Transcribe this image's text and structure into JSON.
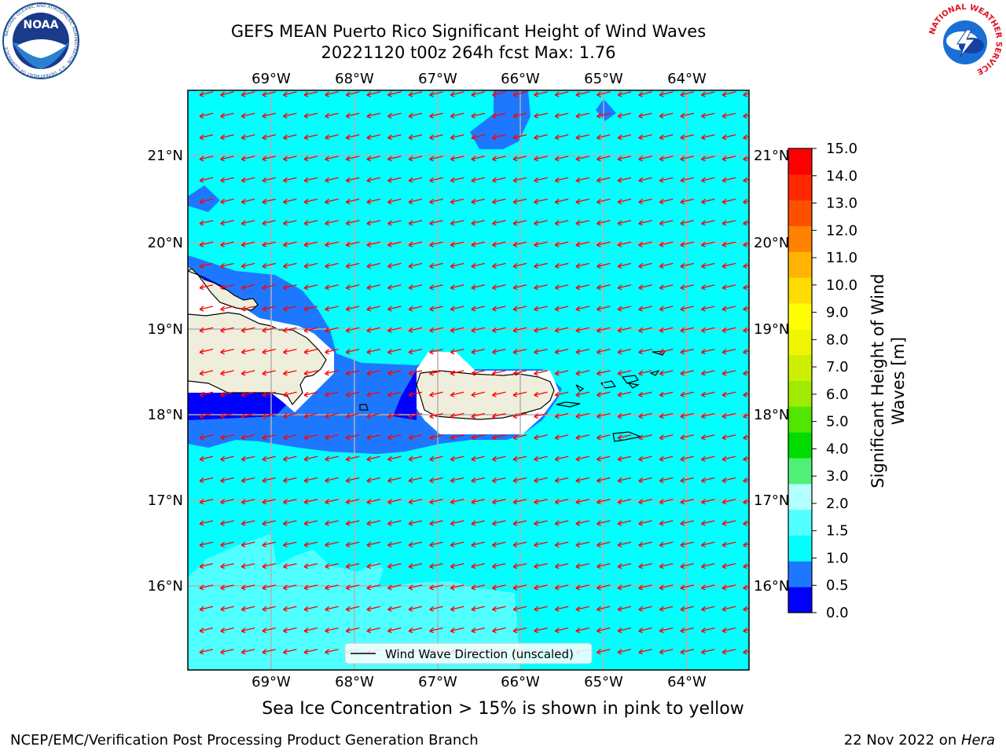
{
  "title": {
    "line1": "GEFS MEAN Puerto Rico Significant Height of Wind Waves",
    "line2": "20221120 t00z 264h fcst   Max: 1.76"
  },
  "logos": {
    "left": {
      "icon": "noaa-logo",
      "text": "NOAA",
      "ring_text": "NATIONAL OCEANIC AND ATMOSPHERIC ADMINISTRATION · U.S. DEPARTMENT OF COMMERCE"
    },
    "right": {
      "icon": "national-weather-service-logo",
      "ring_text": "NATIONAL WEATHER SERVICE"
    }
  },
  "map": {
    "lon_labels": [
      "69°W",
      "68°W",
      "67°W",
      "66°W",
      "65°W",
      "64°W"
    ],
    "lat_labels": [
      "21°N",
      "20°N",
      "19°N",
      "18°N",
      "17°N",
      "16°N"
    ],
    "legend_label": "Wind Wave Direction (unscaled)",
    "arrow_color": "#ff0000",
    "land_color": "#efeedc"
  },
  "colorbar": {
    "title": "Significant Height of Wind Waves [m]",
    "levels": [
      "0.0",
      "0.5",
      "1.0",
      "1.5",
      "2.0",
      "3.0",
      "4.0",
      "5.0",
      "6.0",
      "7.0",
      "8.0",
      "9.0",
      "10.0",
      "11.0",
      "12.0",
      "13.0",
      "14.0",
      "15.0"
    ],
    "colors": [
      "#0000ff",
      "#1e78ff",
      "#00ffff",
      "#50ffff",
      "#b4ffff",
      "#50f078",
      "#00dc00",
      "#50e600",
      "#a0eb00",
      "#cdf000",
      "#f0f500",
      "#ffff00",
      "#ffdc00",
      "#ffb400",
      "#ff8200",
      "#ff5000",
      "#ff2800",
      "#ff0000"
    ]
  },
  "ice_note": "Sea Ice Concentration > 15% is shown in pink to yellow",
  "footer": {
    "left": "NCEP/EMC/Verification Post Processing Product Generation Branch",
    "right_date": "22 Nov 2022 on ",
    "right_host": "Hera"
  }
}
